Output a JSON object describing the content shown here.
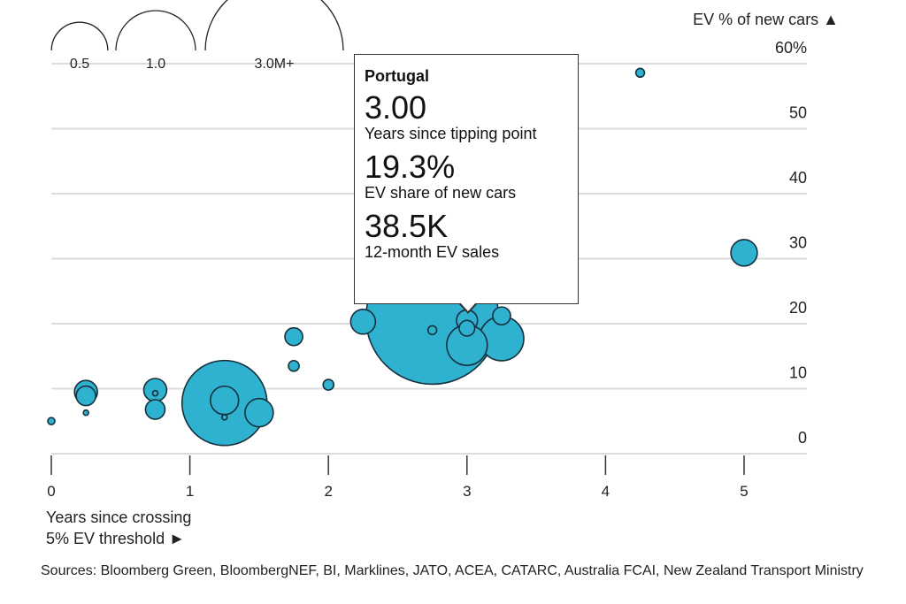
{
  "chart_data": {
    "type": "scatter",
    "subtype": "bubble",
    "xlabel": "Years since crossing 5% EV threshold ►",
    "ylabel": "EV % of new cars ▲",
    "xlim": [
      0,
      5.4
    ],
    "ylim": [
      0,
      60
    ],
    "x_ticks": [
      "0",
      "1",
      "2",
      "3",
      "4",
      "5"
    ],
    "y_ticks": [
      "0",
      "10",
      "20",
      "30",
      "40",
      "50",
      "60%"
    ],
    "grid": true,
    "size_legend": {
      "labels": [
        "0.5",
        "1.0",
        "3.0M+"
      ],
      "values_millions": [
        0.5,
        1.0,
        3.0
      ]
    },
    "bubble_color": "#2fb1d0",
    "stroke_color": "#15303d",
    "points": [
      {
        "x": 2.75,
        "y": 20.9,
        "sales_m": 2.78
      },
      {
        "x": 1.25,
        "y": 7.8,
        "sales_m": 1.14
      },
      {
        "x": 3.25,
        "y": 17.7,
        "sales_m": 0.31
      },
      {
        "x": 3.0,
        "y": 16.7,
        "sales_m": 0.26
      },
      {
        "x": 3.0,
        "y": 20.5,
        "sales_m": 0.07
      },
      {
        "x": 1.25,
        "y": 8.2,
        "sales_m": 0.126
      },
      {
        "x": 1.5,
        "y": 6.3,
        "sales_m": 0.126
      },
      {
        "x": 5.0,
        "y": 30.9,
        "sales_m": 0.11
      },
      {
        "x": 2.25,
        "y": 20.3,
        "sales_m": 0.097
      },
      {
        "x": 0.25,
        "y": 9.5,
        "sales_m": 0.083
      },
      {
        "x": 0.75,
        "y": 9.8,
        "sales_m": 0.083
      },
      {
        "x": 0.25,
        "y": 8.9,
        "sales_m": 0.06
      },
      {
        "x": 0.75,
        "y": 6.8,
        "sales_m": 0.06
      },
      {
        "x": 1.75,
        "y": 18.0,
        "sales_m": 0.05
      },
      {
        "x": 3.25,
        "y": 21.2,
        "sales_m": 0.05
      },
      {
        "x": 3.0,
        "y": 19.3,
        "sales_m": 0.0385,
        "label": "Portugal"
      },
      {
        "x": 1.75,
        "y": 13.5,
        "sales_m": 0.018
      },
      {
        "x": 2.0,
        "y": 10.6,
        "sales_m": 0.018
      },
      {
        "x": 2.75,
        "y": 19.0,
        "sales_m": 0.012
      },
      {
        "x": 4.25,
        "y": 58.6,
        "sales_m": 0.012
      },
      {
        "x": 0.0,
        "y": 5.0,
        "sales_m": 0.008
      },
      {
        "x": 0.25,
        "y": 6.3,
        "sales_m": 0.0044
      },
      {
        "x": 0.75,
        "y": 9.3,
        "sales_m": 0.0044
      },
      {
        "x": 1.25,
        "y": 5.6,
        "sales_m": 0.0044
      }
    ]
  },
  "tooltip": {
    "country": "Portugal",
    "years_value": "3.00",
    "years_label": "Years since tipping point",
    "share_value": "19.3%",
    "share_label": "EV share of new cars",
    "sales_value": "38.5K",
    "sales_label": "12-month EV sales"
  },
  "axis": {
    "y_title": "EV % of new cars ▲",
    "x_title_line1": "Years since crossing",
    "x_title_line2": "5% EV threshold ►"
  },
  "sources": "Sources: Bloomberg Green, BloombergNEF, BI, Marklines, JATO, ACEA, CATARC, Australia FCAI, New Zealand Transport Ministry"
}
